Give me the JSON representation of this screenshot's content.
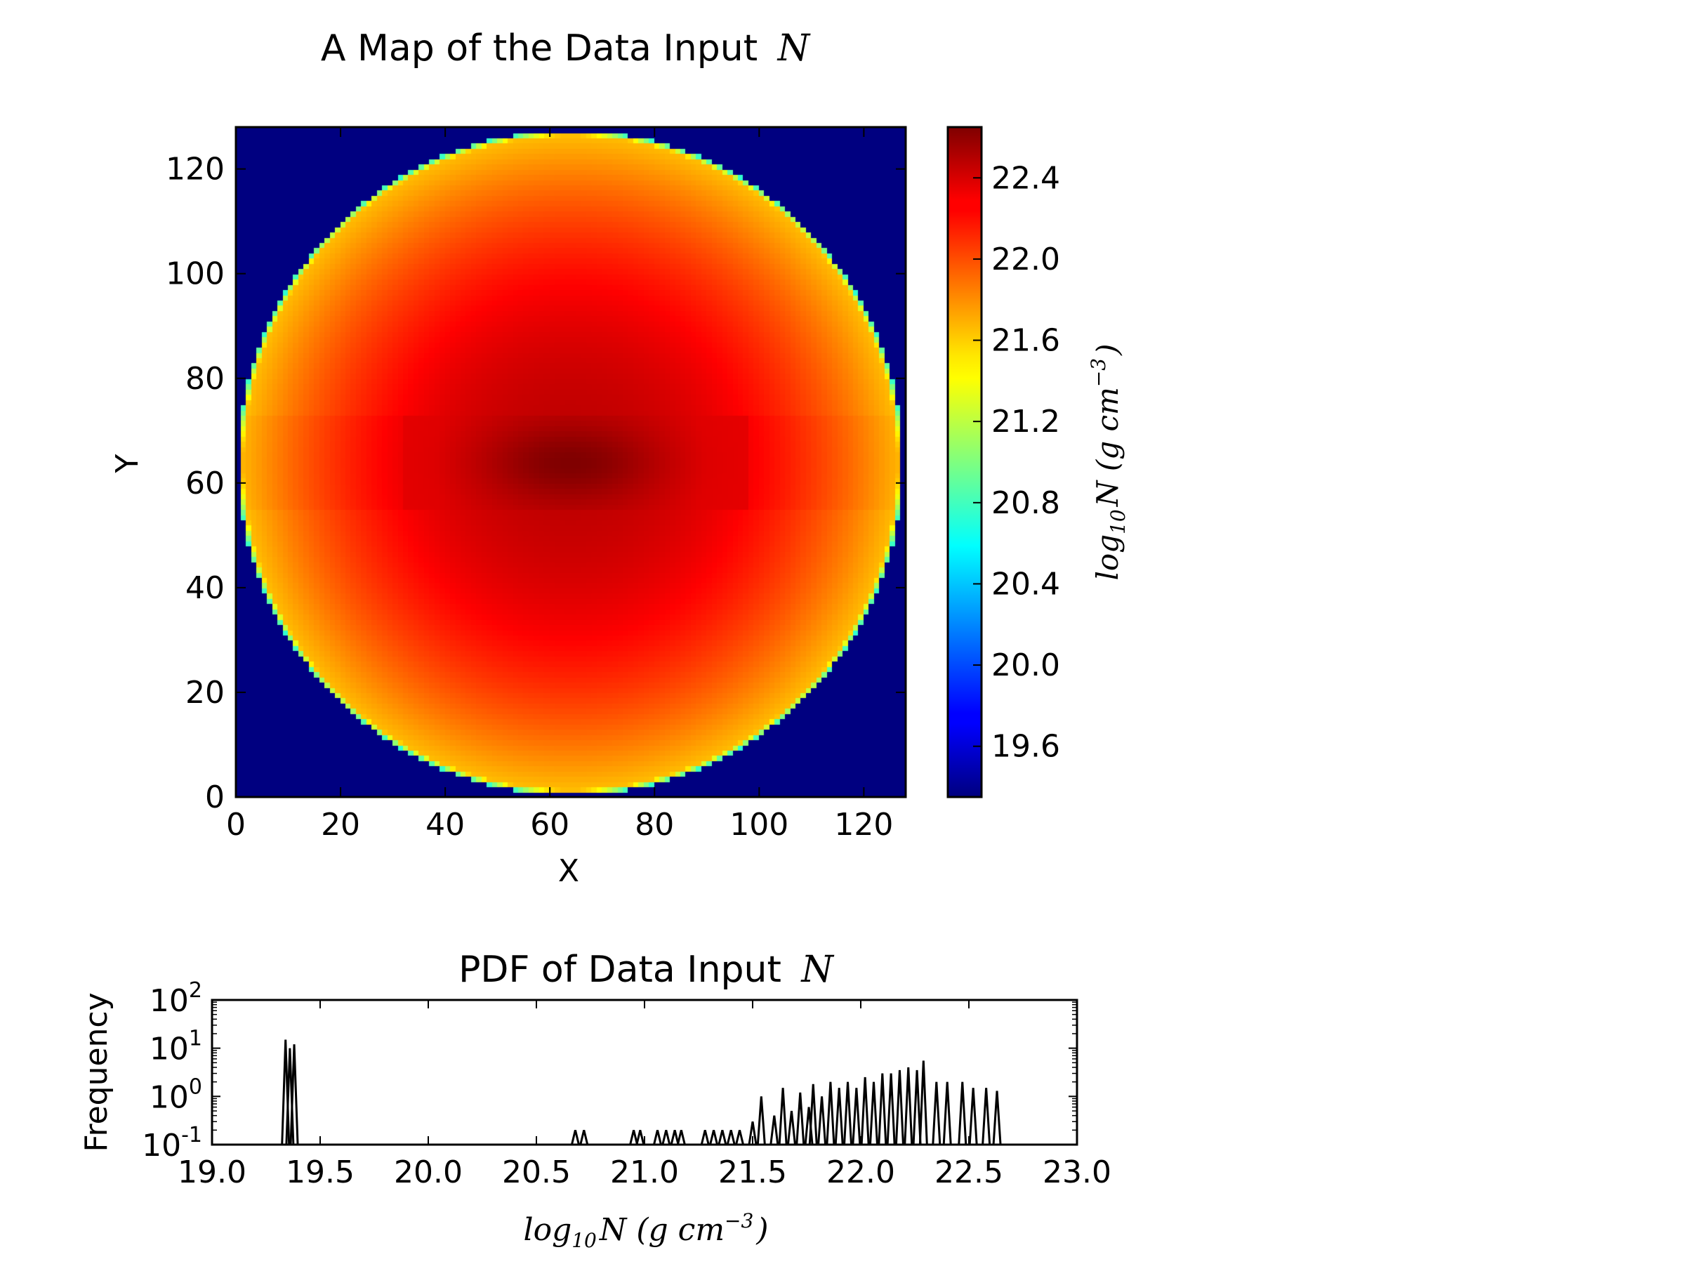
{
  "chart_data": [
    {
      "type": "heatmap",
      "title": "A Map of the Data Input",
      "title_symbol": "N",
      "xlabel": "X",
      "ylabel": "Y",
      "xlim": [
        0,
        128
      ],
      "ylim": [
        0,
        128
      ],
      "xticks": [
        "0",
        "20",
        "40",
        "60",
        "80",
        "100",
        "120"
      ],
      "yticks": [
        "0",
        "20",
        "40",
        "60",
        "80",
        "100",
        "120"
      ],
      "colormap": "jet",
      "background_value": 19.35,
      "disk": {
        "center_x": 64,
        "center_y": 64,
        "radius": 63.5,
        "edge_value": 21.6,
        "center_value": 22.45
      },
      "band": {
        "y_from": 55.5,
        "y_to": 72.5,
        "x_from": 32,
        "x_to": 98,
        "peak_value": 22.65
      },
      "colorbar": {
        "range": [
          19.35,
          22.65
        ],
        "ticks": [
          "19.6",
          "20.0",
          "20.4",
          "20.8",
          "21.2",
          "21.6",
          "22.0",
          "22.4"
        ],
        "label_main": "log",
        "label_sub": "10",
        "label_sym": "N (g cm",
        "label_sup": "−3",
        "label_close": ")"
      }
    },
    {
      "type": "bar",
      "title": "PDF of Data Input",
      "title_symbol": "N",
      "ylabel": "Frequency",
      "xlabel_main": "log",
      "xlabel_sub": "10",
      "xlabel_sym": "N (g cm",
      "xlabel_sup": "−3",
      "xlabel_close": ")",
      "xlim": [
        19.0,
        23.0
      ],
      "xticks": [
        "19.0",
        "19.5",
        "20.0",
        "20.5",
        "21.0",
        "21.5",
        "22.0",
        "22.5",
        "23.0"
      ],
      "yscale": "log",
      "ylim": [
        0.1,
        100
      ],
      "yticks": [
        {
          "base": "10",
          "exp": "-1"
        },
        {
          "base": "10",
          "exp": "0"
        },
        {
          "base": "10",
          "exp": "1"
        },
        {
          "base": "10",
          "exp": "2"
        }
      ],
      "bars": [
        [
          19.34,
          15
        ],
        [
          19.36,
          10
        ],
        [
          19.38,
          12
        ],
        [
          20.68,
          0.2
        ],
        [
          20.72,
          0.2
        ],
        [
          20.95,
          0.2
        ],
        [
          20.98,
          0.2
        ],
        [
          21.06,
          0.2
        ],
        [
          21.1,
          0.2
        ],
        [
          21.14,
          0.2
        ],
        [
          21.17,
          0.2
        ],
        [
          21.28,
          0.2
        ],
        [
          21.32,
          0.2
        ],
        [
          21.36,
          0.2
        ],
        [
          21.4,
          0.2
        ],
        [
          21.44,
          0.2
        ],
        [
          21.5,
          0.3
        ],
        [
          21.54,
          1.0
        ],
        [
          21.6,
          0.4
        ],
        [
          21.64,
          1.5
        ],
        [
          21.68,
          0.5
        ],
        [
          21.72,
          1.2
        ],
        [
          21.76,
          0.6
        ],
        [
          21.78,
          1.8
        ],
        [
          21.82,
          1.0
        ],
        [
          21.86,
          2.0
        ],
        [
          21.9,
          1.5
        ],
        [
          21.94,
          2.0
        ],
        [
          21.98,
          1.5
        ],
        [
          22.02,
          2.5
        ],
        [
          22.06,
          2.0
        ],
        [
          22.1,
          3.0
        ],
        [
          22.14,
          3.0
        ],
        [
          22.18,
          3.5
        ],
        [
          22.22,
          4.0
        ],
        [
          22.26,
          3.5
        ],
        [
          22.29,
          5.5
        ],
        [
          22.35,
          2.0
        ],
        [
          22.4,
          2.0
        ],
        [
          22.47,
          2.0
        ],
        [
          22.52,
          1.5
        ],
        [
          22.58,
          1.5
        ],
        [
          22.63,
          1.3
        ]
      ]
    }
  ]
}
